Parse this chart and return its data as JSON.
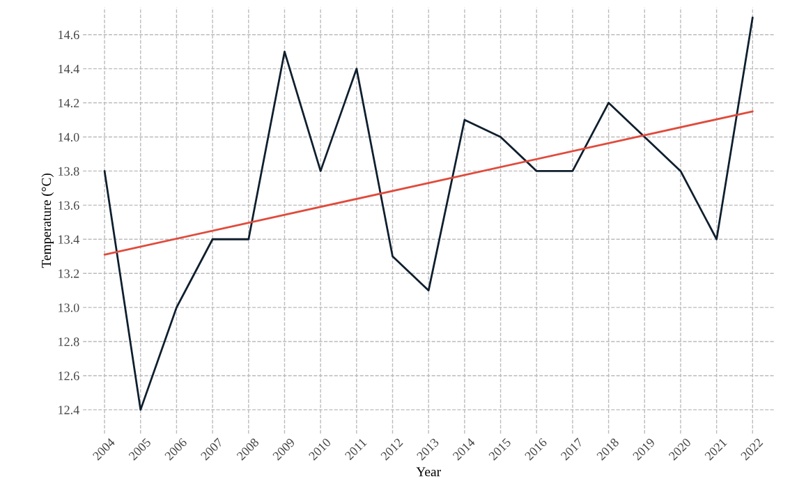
{
  "chart_data": {
    "type": "line",
    "xlabel": "Year",
    "ylabel": "Temperature (°C)",
    "x": [
      2004,
      2005,
      2006,
      2007,
      2008,
      2009,
      2010,
      2011,
      2012,
      2013,
      2014,
      2015,
      2016,
      2017,
      2018,
      2019,
      2020,
      2021,
      2022
    ],
    "series": [
      {
        "color": "#0f1f2e",
        "values": [
          13.8,
          12.4,
          13.0,
          13.4,
          13.4,
          14.5,
          13.8,
          14.4,
          13.3,
          13.1,
          14.1,
          14.0,
          13.8,
          13.8,
          14.2,
          14.0,
          13.8,
          13.4,
          14.7
        ]
      },
      {
        "color": "#e04b3c",
        "x": [
          2004,
          2022
        ],
        "values": [
          13.31,
          14.15
        ]
      }
    ],
    "xlim": [
      2003.4,
      2022.6
    ],
    "ylim": [
      12.26,
      14.76
    ],
    "xticks": [
      2004,
      2005,
      2006,
      2007,
      2008,
      2009,
      2010,
      2011,
      2012,
      2013,
      2014,
      2015,
      2016,
      2017,
      2018,
      2019,
      2020,
      2021,
      2022
    ],
    "yticks": [
      {
        "value": 12.4,
        "label": "12.4"
      },
      {
        "value": 12.6,
        "label": "12.6"
      },
      {
        "value": 12.8,
        "label": "12.8"
      },
      {
        "value": 13.0,
        "label": "13.0"
      },
      {
        "value": 13.2,
        "label": "13.2"
      },
      {
        "value": 13.4,
        "label": "13.4"
      },
      {
        "value": 13.6,
        "label": "13.6"
      },
      {
        "value": 13.8,
        "label": "13.8"
      },
      {
        "value": 14.0,
        "label": "14.0"
      },
      {
        "value": 14.2,
        "label": "14.2"
      },
      {
        "value": 14.4,
        "label": "14.4"
      },
      {
        "value": 14.6,
        "label": "14.6"
      }
    ],
    "grid": true
  }
}
